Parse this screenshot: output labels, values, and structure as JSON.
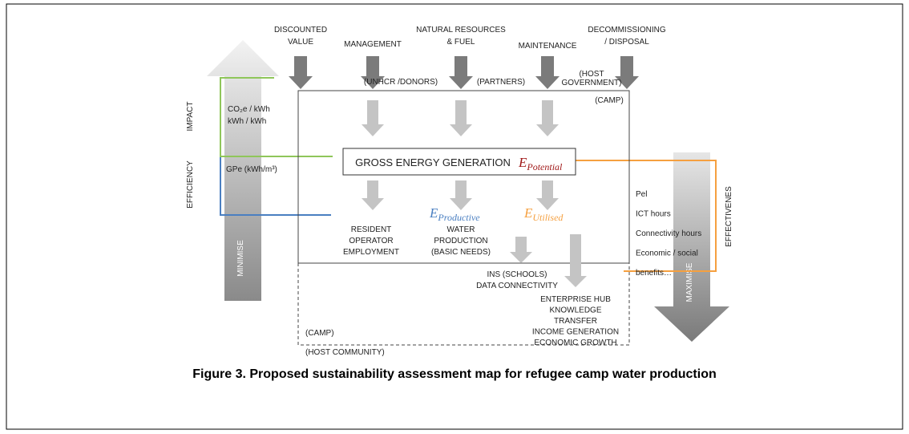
{
  "top_inputs": [
    {
      "lines": [
        "DISCOUNTED",
        "VALUE"
      ]
    },
    {
      "lines": [
        "MANAGEMENT"
      ]
    },
    {
      "lines": [
        "NATURAL RESOURCES",
        "& FUEL"
      ]
    },
    {
      "lines": [
        "MAINTENANCE"
      ]
    },
    {
      "lines": [
        "DECOMMISSIONING",
        "/ DISPOSAL"
      ]
    }
  ],
  "stakeholders": {
    "donors": "(UNHCR /DONORS)",
    "partners": "(PARTNERS)",
    "government": [
      "(HOST",
      "GOVERNMENT)"
    ],
    "camp": "(CAMP)"
  },
  "left": {
    "impact": "IMPACT",
    "efficiency": "EFFICIENCY",
    "minimise": "MINIMISE",
    "impact_metrics": [
      "CO₂e / kWh",
      "kWh / kWh"
    ],
    "efficiency_metric": "GPe (kWh/m³)"
  },
  "center": {
    "title": "GROSS ENERGY GENERATION",
    "potential": {
      "symbol": "E",
      "subscript": "Potential"
    }
  },
  "productive": {
    "symbol": "E",
    "subscript": "Productive"
  },
  "utilised": {
    "symbol": "E",
    "subscript": "Utilised"
  },
  "employment": [
    "RESIDENT",
    "OPERATOR",
    "EMPLOYMENT"
  ],
  "water": [
    "WATER",
    "PRODUCTION",
    "(BASIC NEEDS)"
  ],
  "outcomes": [
    "INS (SCHOOLS)",
    "DATA CONNECTIVITY"
  ],
  "community_outcomes": [
    "ENTERPRISE HUB",
    "KNOWLEDGE",
    "TRANSFER",
    "INCOME GENERATION",
    "ECONOMIC GROWTH"
  ],
  "camp_label": "(CAMP)",
  "host_community": "(HOST COMMUNITY)",
  "right": {
    "metrics": [
      "Pel",
      "ICT hours",
      "Connectivity hours",
      "Economic / social",
      "benefits…"
    ],
    "effectiveness": "EFFECTIVENES",
    "maximise": "MAXIMISE"
  },
  "caption": "Figure 3. Proposed sustainability assessment map for refugee camp water production"
}
